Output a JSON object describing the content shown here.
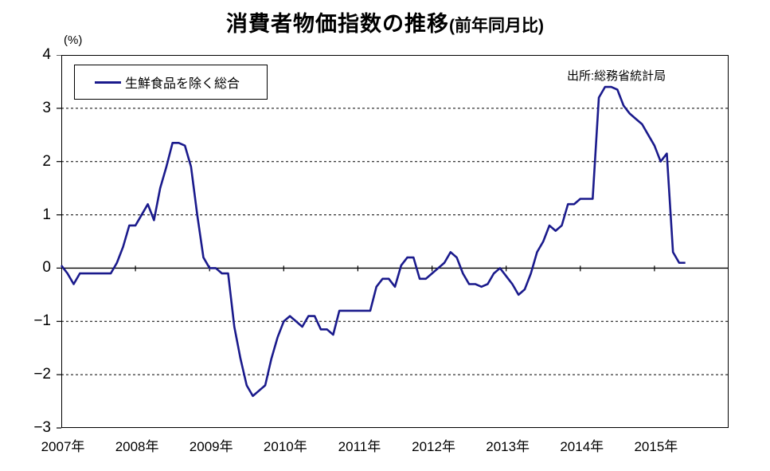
{
  "title": {
    "main": "消費者物価指数の推移",
    "sub": "(前年同月比)"
  },
  "y_axis_unit": "(%)",
  "source_note": "出所:総務省統計局",
  "legend": {
    "series_label": "生鮮食品を除く総合"
  },
  "colors": {
    "series_line": "#1a1a8c",
    "axis": "#000000",
    "background": "#ffffff"
  },
  "chart_data": {
    "type": "line",
    "title": "消費者物価指数の推移(前年同月比)",
    "ylabel": "(%)",
    "ylim": [
      -3,
      4
    ],
    "y_tick_labels": [
      "4",
      "3",
      "2",
      "1",
      "0",
      "−1",
      "−2",
      "−3"
    ],
    "y_tick_values": [
      4,
      3,
      2,
      1,
      0,
      -1,
      -2,
      -3
    ],
    "dashed_gridlines_at": [
      3,
      2,
      1,
      -1,
      -2
    ],
    "zero_axis_solid": true,
    "x_year_labels": [
      "2007年",
      "2008年",
      "2009年",
      "2010年",
      "2011年",
      "2012年",
      "2013年",
      "2014年",
      "2015年"
    ],
    "x_axis_total_months": 108,
    "x_start": "2007-01",
    "x_end": "2015-06",
    "legend_position": "top-left-inside",
    "series": [
      {
        "name": "生鮮食品を除く総合",
        "color": "#1a1a8c",
        "values": [
          0.05,
          -0.1,
          -0.3,
          -0.1,
          -0.1,
          -0.1,
          -0.1,
          -0.1,
          -0.1,
          0.1,
          0.4,
          0.8,
          0.8,
          1.0,
          1.2,
          0.9,
          1.5,
          1.9,
          2.35,
          2.35,
          2.3,
          1.9,
          1.0,
          0.2,
          0.0,
          0.0,
          -0.1,
          -0.1,
          -1.1,
          -1.7,
          -2.2,
          -2.4,
          -2.3,
          -2.2,
          -1.7,
          -1.3,
          -1.0,
          -0.9,
          -1.0,
          -1.1,
          -0.9,
          -0.9,
          -1.15,
          -1.15,
          -1.25,
          -0.8,
          -0.8,
          -0.8,
          -0.8,
          -0.8,
          -0.8,
          -0.35,
          -0.2,
          -0.2,
          -0.35,
          0.05,
          0.2,
          0.2,
          -0.2,
          -0.2,
          -0.1,
          0.0,
          0.1,
          0.3,
          0.2,
          -0.1,
          -0.3,
          -0.3,
          -0.35,
          -0.3,
          -0.1,
          0.0,
          -0.15,
          -0.3,
          -0.5,
          -0.4,
          -0.1,
          0.3,
          0.5,
          0.8,
          0.7,
          0.8,
          1.2,
          1.2,
          1.3,
          1.3,
          1.3,
          3.2,
          3.4,
          3.4,
          3.35,
          3.05,
          2.9,
          2.8,
          2.7,
          2.5,
          2.3,
          2.0,
          2.15,
          0.3,
          0.1,
          0.1
        ]
      }
    ]
  }
}
